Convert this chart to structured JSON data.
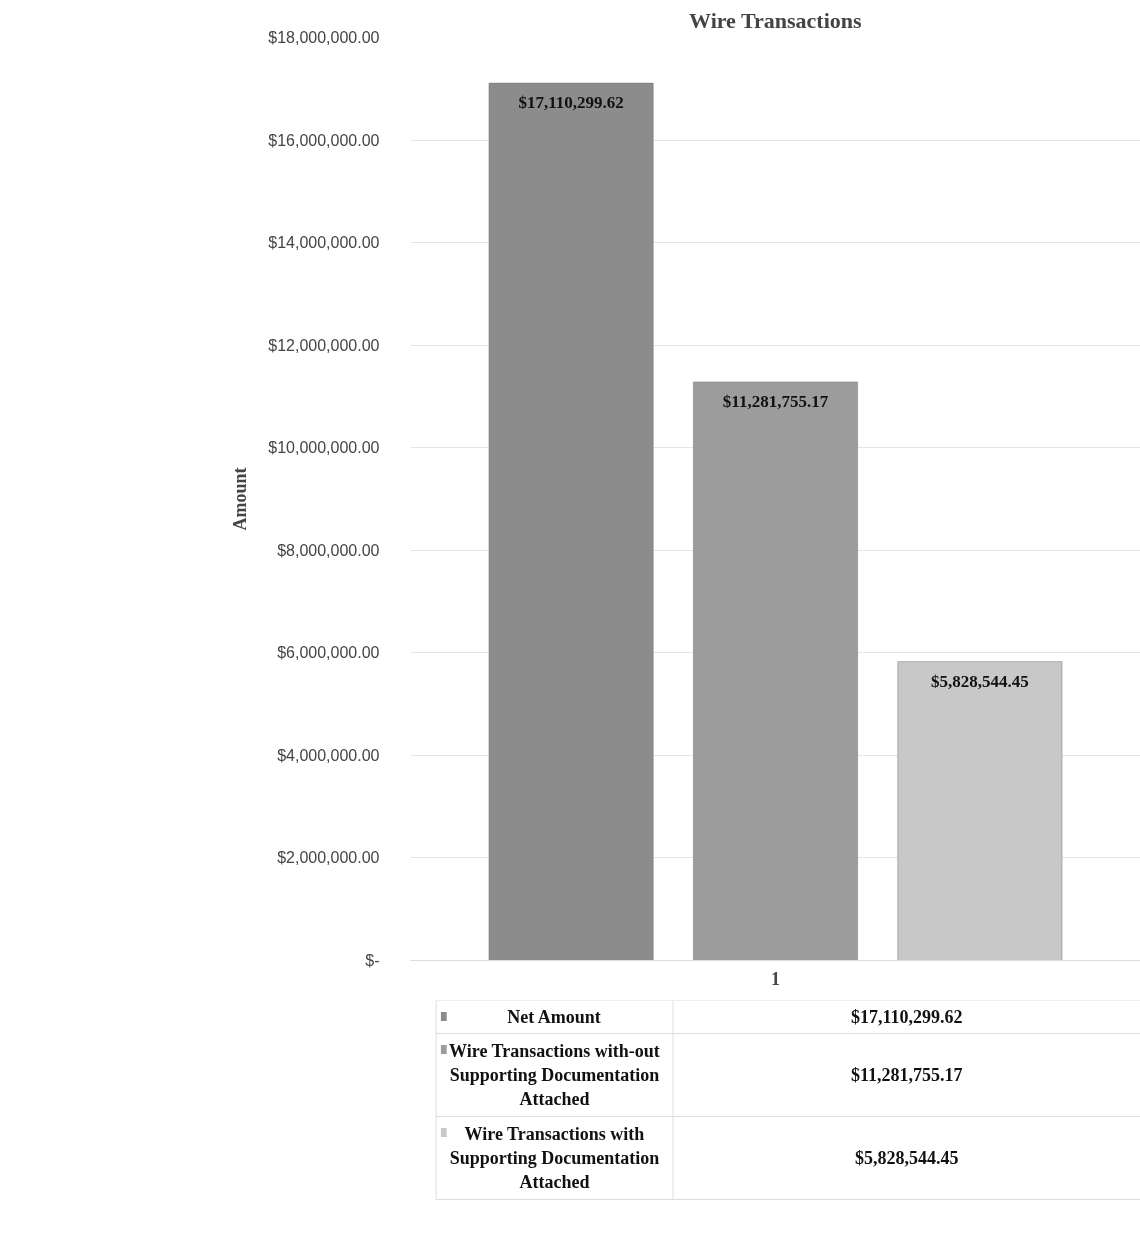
{
  "chart_data": {
    "type": "bar",
    "title": "Wire Transactions",
    "ylabel": "Amount",
    "categories": [
      "1"
    ],
    "series": [
      {
        "name": "Net Amount",
        "color": "#8c8c8c",
        "values": [
          17110299.62
        ],
        "value_labels": [
          "$17,110,299.62"
        ]
      },
      {
        "name": "Wire Transactions with-out Supporting Documentation Attached",
        "color": "#9c9c9c",
        "values": [
          11281755.17
        ],
        "value_labels": [
          "$11,281,755.17"
        ]
      },
      {
        "name": "Wire Transactions with Supporting Documentation Attached",
        "color": "#c8c8c8",
        "values": [
          5828544.45
        ],
        "value_labels": [
          "$5,828,544.45"
        ]
      }
    ],
    "ylim": [
      0,
      18000000
    ],
    "yticks": [
      {
        "value": 0,
        "label": "$-"
      },
      {
        "value": 2000000,
        "label": "$2,000,000.00"
      },
      {
        "value": 4000000,
        "label": "$4,000,000.00"
      },
      {
        "value": 6000000,
        "label": "$6,000,000.00"
      },
      {
        "value": 8000000,
        "label": "$8,000,000.00"
      },
      {
        "value": 10000000,
        "label": "$10,000,000.00"
      },
      {
        "value": 12000000,
        "label": "$12,000,000.00"
      },
      {
        "value": 14000000,
        "label": "$14,000,000.00"
      },
      {
        "value": 16000000,
        "label": "$16,000,000.00"
      },
      {
        "value": 18000000,
        "label": "$18,000,000.00"
      }
    ],
    "grid": "y",
    "legend": "bottom"
  }
}
